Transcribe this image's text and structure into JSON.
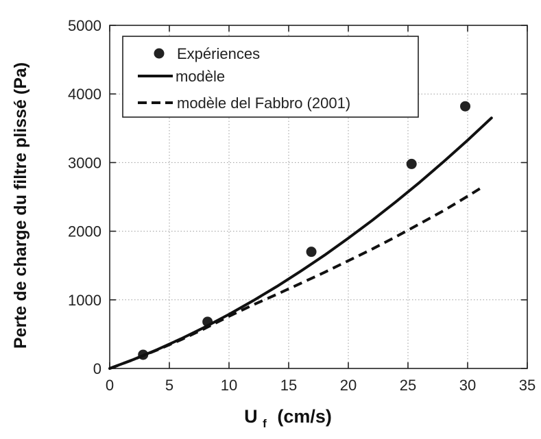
{
  "chart_data": {
    "type": "scatter",
    "xlabel": "U",
    "xlabel_sub": "f",
    "xlabel_unit": "(cm/s)",
    "ylabel": "Perte de charge du filtre plissé (Pa)",
    "xlim": [
      0,
      35
    ],
    "ylim": [
      0,
      5000
    ],
    "xticks": [
      0,
      5,
      10,
      15,
      20,
      25,
      30,
      35
    ],
    "yticks": [
      0,
      1000,
      2000,
      3000,
      4000,
      5000
    ],
    "grid": true,
    "legend_position": "top-left",
    "series": [
      {
        "name": "Expériences",
        "style": "markers",
        "color": "#222222",
        "x": [
          2.8,
          8.2,
          16.9,
          25.3,
          29.8
        ],
        "y": [
          200,
          680,
          1700,
          2980,
          3820
        ]
      },
      {
        "name": "modèle",
        "style": "solid",
        "color": "#111111",
        "x": [
          0,
          2,
          4,
          6,
          8,
          10,
          12,
          14,
          16,
          18,
          20,
          22,
          24,
          26,
          28,
          30,
          32
        ],
        "y": [
          0,
          131,
          276,
          434,
          605,
          788,
          985,
          1194,
          1416,
          1650,
          1898,
          2158,
          2431,
          2716,
          3015,
          3326,
          3651
        ]
      },
      {
        "name": "modèle del Fabbro (2001)",
        "style": "dashed",
        "color": "#111111",
        "x": [
          0,
          2,
          4,
          6,
          8,
          10,
          12,
          14,
          16,
          18,
          20,
          22,
          24,
          26,
          28,
          30,
          31.2
        ],
        "y": [
          0,
          130,
          270,
          420,
          585,
          760,
          925,
          1080,
          1240,
          1400,
          1570,
          1740,
          1920,
          2110,
          2300,
          2510,
          2640
        ]
      }
    ]
  }
}
